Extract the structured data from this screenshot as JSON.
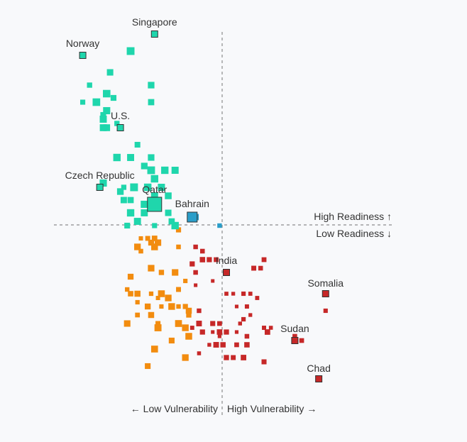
{
  "chart_data": {
    "type": "scatter",
    "title": "",
    "x_axis": {
      "low_label": "← Low Vulnerability",
      "high_label": "High Vulnerability →"
    },
    "y_axis": {
      "high_label": "High Readiness ↑",
      "low_label": "Low Readiness ↓"
    },
    "quadrant_colors": {
      "low_vulnerability_high_readiness": "#1fd6ac",
      "high_vulnerability_high_readiness": "#2a9ec9",
      "low_vulnerability_low_readiness": "#f28c0f",
      "high_vulnerability_low_readiness": "#c62828"
    },
    "labeled_points": [
      {
        "name": "Singapore",
        "x": 0.29,
        "y": 0.92,
        "q": "low_vulnerability_high_readiness"
      },
      {
        "name": "Norway",
        "x": 0.08,
        "y": 0.87,
        "q": "low_vulnerability_high_readiness"
      },
      {
        "name": "U.S.",
        "x": 0.19,
        "y": 0.7,
        "q": "low_vulnerability_high_readiness"
      },
      {
        "name": "Czech Republic",
        "x": 0.13,
        "y": 0.56,
        "q": "low_vulnerability_high_readiness"
      },
      {
        "name": "Qatar",
        "x": 0.29,
        "y": 0.52,
        "q": "low_vulnerability_high_readiness",
        "size": 20
      },
      {
        "name": "Bahrain",
        "x": 0.4,
        "y": 0.49,
        "q": "high_vulnerability_high_readiness",
        "size": 14
      },
      {
        "name": "India",
        "x": 0.5,
        "y": 0.36,
        "q": "high_vulnerability_low_readiness"
      },
      {
        "name": "Somalia",
        "x": 0.79,
        "y": 0.31,
        "q": "high_vulnerability_low_readiness"
      },
      {
        "name": "Sudan",
        "x": 0.7,
        "y": 0.2,
        "q": "high_vulnerability_low_readiness"
      },
      {
        "name": "Chad",
        "x": 0.77,
        "y": 0.11,
        "q": "high_vulnerability_low_readiness"
      }
    ],
    "points": [
      [
        0.22,
        0.88
      ],
      [
        0.16,
        0.83
      ],
      [
        0.1,
        0.8
      ],
      [
        0.28,
        0.8
      ],
      [
        0.15,
        0.78
      ],
      [
        0.17,
        0.77
      ],
      [
        0.08,
        0.76
      ],
      [
        0.12,
        0.76
      ],
      [
        0.28,
        0.76
      ],
      [
        0.15,
        0.74
      ],
      [
        0.14,
        0.73
      ],
      [
        0.14,
        0.72
      ],
      [
        0.18,
        0.71
      ],
      [
        0.15,
        0.7
      ],
      [
        0.14,
        0.7
      ],
      [
        0.24,
        0.66
      ],
      [
        0.18,
        0.63
      ],
      [
        0.22,
        0.63
      ],
      [
        0.28,
        0.63
      ],
      [
        0.26,
        0.61
      ],
      [
        0.28,
        0.6
      ],
      [
        0.32,
        0.6
      ],
      [
        0.29,
        0.58
      ],
      [
        0.35,
        0.6
      ],
      [
        0.14,
        0.57
      ],
      [
        0.2,
        0.56
      ],
      [
        0.23,
        0.56
      ],
      [
        0.27,
        0.56
      ],
      [
        0.31,
        0.56
      ],
      [
        0.19,
        0.55
      ],
      [
        0.29,
        0.54
      ],
      [
        0.33,
        0.54
      ],
      [
        0.26,
        0.52
      ],
      [
        0.28,
        0.52
      ],
      [
        0.2,
        0.53
      ],
      [
        0.22,
        0.53
      ],
      [
        0.26,
        0.5
      ],
      [
        0.22,
        0.5
      ],
      [
        0.24,
        0.48
      ],
      [
        0.29,
        0.47
      ],
      [
        0.25,
        0.44
      ],
      [
        0.27,
        0.44
      ],
      [
        0.29,
        0.44
      ],
      [
        0.28,
        0.43
      ],
      [
        0.3,
        0.43
      ],
      [
        0.25,
        0.41
      ],
      [
        0.29,
        0.42
      ],
      [
        0.21,
        0.47
      ],
      [
        0.33,
        0.5
      ],
      [
        0.34,
        0.48
      ],
      [
        0.36,
        0.46
      ],
      [
        0.35,
        0.47
      ],
      [
        0.41,
        0.49
      ],
      [
        0.48,
        0.47
      ],
      [
        0.36,
        0.42
      ],
      [
        0.41,
        0.42
      ],
      [
        0.43,
        0.41
      ],
      [
        0.43,
        0.39
      ],
      [
        0.45,
        0.39
      ],
      [
        0.47,
        0.39
      ],
      [
        0.4,
        0.38
      ],
      [
        0.61,
        0.39
      ],
      [
        0.58,
        0.37
      ],
      [
        0.6,
        0.37
      ],
      [
        0.24,
        0.42
      ],
      [
        0.28,
        0.37
      ],
      [
        0.22,
        0.35
      ],
      [
        0.21,
        0.32
      ],
      [
        0.22,
        0.31
      ],
      [
        0.24,
        0.31
      ],
      [
        0.28,
        0.31
      ],
      [
        0.31,
        0.31
      ],
      [
        0.33,
        0.3
      ],
      [
        0.24,
        0.29
      ],
      [
        0.3,
        0.3
      ],
      [
        0.27,
        0.28
      ],
      [
        0.31,
        0.28
      ],
      [
        0.34,
        0.28
      ],
      [
        0.24,
        0.26
      ],
      [
        0.28,
        0.26
      ],
      [
        0.21,
        0.24
      ],
      [
        0.3,
        0.24
      ],
      [
        0.3,
        0.23
      ],
      [
        0.34,
        0.2
      ],
      [
        0.29,
        0.18
      ],
      [
        0.27,
        0.14
      ],
      [
        0.35,
        0.36
      ],
      [
        0.31,
        0.36
      ],
      [
        0.41,
        0.36
      ],
      [
        0.46,
        0.34
      ],
      [
        0.36,
        0.32
      ],
      [
        0.38,
        0.34
      ],
      [
        0.41,
        0.33
      ],
      [
        0.5,
        0.31
      ],
      [
        0.52,
        0.31
      ],
      [
        0.55,
        0.31
      ],
      [
        0.57,
        0.31
      ],
      [
        0.59,
        0.3
      ],
      [
        0.56,
        0.28
      ],
      [
        0.53,
        0.28
      ],
      [
        0.36,
        0.28
      ],
      [
        0.38,
        0.28
      ],
      [
        0.39,
        0.27
      ],
      [
        0.42,
        0.27
      ],
      [
        0.39,
        0.26
      ],
      [
        0.36,
        0.24
      ],
      [
        0.42,
        0.24
      ],
      [
        0.46,
        0.24
      ],
      [
        0.48,
        0.24
      ],
      [
        0.54,
        0.24
      ],
      [
        0.55,
        0.25
      ],
      [
        0.57,
        0.26
      ],
      [
        0.38,
        0.23
      ],
      [
        0.4,
        0.23
      ],
      [
        0.43,
        0.22
      ],
      [
        0.46,
        0.22
      ],
      [
        0.48,
        0.22
      ],
      [
        0.5,
        0.22
      ],
      [
        0.53,
        0.22
      ],
      [
        0.56,
        0.21
      ],
      [
        0.61,
        0.23
      ],
      [
        0.63,
        0.23
      ],
      [
        0.48,
        0.21
      ],
      [
        0.39,
        0.21
      ],
      [
        0.47,
        0.19
      ],
      [
        0.45,
        0.19
      ],
      [
        0.49,
        0.19
      ],
      [
        0.53,
        0.19
      ],
      [
        0.56,
        0.19
      ],
      [
        0.42,
        0.17
      ],
      [
        0.38,
        0.16
      ],
      [
        0.5,
        0.16
      ],
      [
        0.52,
        0.16
      ],
      [
        0.55,
        0.16
      ],
      [
        0.61,
        0.15
      ],
      [
        0.62,
        0.22
      ],
      [
        0.7,
        0.21
      ],
      [
        0.72,
        0.2
      ],
      [
        0.79,
        0.27
      ]
    ]
  }
}
